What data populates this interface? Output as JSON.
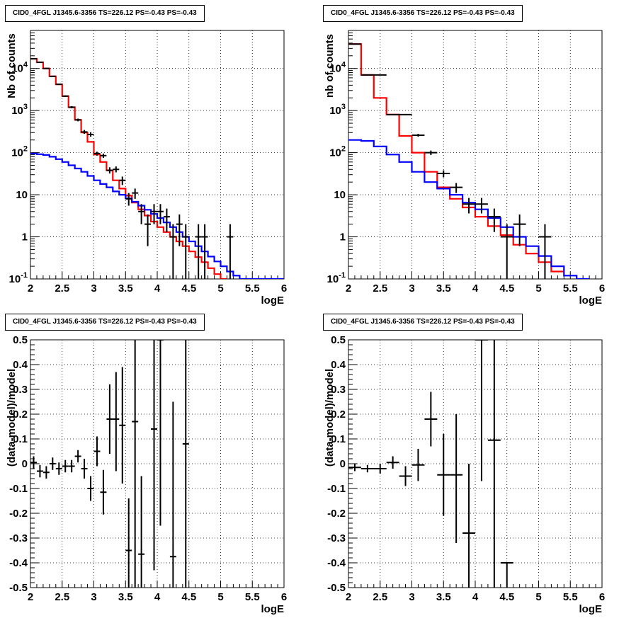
{
  "pads": [
    {
      "title": "CID0_4FGL J1345.6-3356 TS=226.12 PS=-0.43 PS=-0.43"
    },
    {
      "title": "CID0_4FGL J1345.6-3356 TS=226.12 PS=-0.43 PS=-0.43"
    },
    {
      "title": "CID0_4FGL J1345.6-3356 TS=226.12 PS=-0.43 PS=-0.43"
    },
    {
      "title": "CID0_4FGL J1345.6-3356 TS=226.12 PS=-0.43 PS=-0.43"
    }
  ],
  "colors": {
    "total_model": "#ff0000",
    "background_model": "#0000ff",
    "data": "#000000"
  },
  "chart_data": [
    {
      "type": "line",
      "title": "CID0_4FGL J1345.6-3356 TS=226.12 PS=-0.43 PS=-0.43",
      "xlabel": "logE",
      "ylabel": "Nb of counts",
      "xlim": [
        2,
        6
      ],
      "ylim": [
        0.1,
        80000
      ],
      "yscale": "log",
      "grid": true,
      "xticks": [
        "2",
        "2.5",
        "3",
        "3.5",
        "4",
        "4.5",
        "5",
        "5.5",
        "6"
      ],
      "yticks": [
        {
          "value": 0.1,
          "label": "10^-1"
        },
        {
          "value": 1,
          "label": "1"
        },
        {
          "value": 10,
          "label": "10"
        },
        {
          "value": 100,
          "label": "10^2"
        },
        {
          "value": 1000,
          "label": "10^3"
        },
        {
          "value": 10000,
          "label": "10^4"
        }
      ],
      "bin_width": 0.1,
      "series": [
        {
          "key": "red",
          "style": "step",
          "x_start": 2.0,
          "values": [
            17000,
            14000,
            10000,
            6500,
            4200,
            2200,
            1200,
            600,
            300,
            180,
            90,
            60,
            38,
            22,
            14,
            9.5,
            6.5,
            4.5,
            3.2,
            2.3,
            1.7,
            1.3,
            1.0,
            0.78,
            0.6,
            0.45,
            0.33,
            0.25,
            0.18,
            0.13,
            0.1
          ]
        },
        {
          "key": "blue",
          "style": "step",
          "x_start": 2.0,
          "values": [
            95,
            92,
            88,
            80,
            70,
            60,
            50,
            42,
            35,
            28,
            22,
            18,
            15,
            12,
            10,
            8.2,
            6.8,
            5.5,
            4.4,
            3.5,
            2.8,
            2.2,
            1.7,
            1.3,
            1.0,
            0.78,
            0.6,
            0.45,
            0.34,
            0.26,
            0.2,
            0.15,
            0.12,
            0.1,
            0.1,
            0.1,
            0.1,
            0.1,
            0.1,
            0.1
          ]
        },
        {
          "key": "data",
          "style": "errorbar",
          "xerr": 0.05,
          "points": [
            {
              "x": 2.05,
              "y": 17000,
              "lo": 16700,
              "hi": 17300
            },
            {
              "x": 2.15,
              "y": 14000,
              "lo": 13750,
              "hi": 14250
            },
            {
              "x": 2.25,
              "y": 10000,
              "lo": 9800,
              "hi": 10200
            },
            {
              "x": 2.35,
              "y": 6500,
              "lo": 6350,
              "hi": 6650
            },
            {
              "x": 2.45,
              "y": 4200,
              "lo": 4070,
              "hi": 4330
            },
            {
              "x": 2.55,
              "y": 2200,
              "lo": 2110,
              "hi": 2290
            },
            {
              "x": 2.65,
              "y": 1200,
              "lo": 1130,
              "hi": 1270
            },
            {
              "x": 2.75,
              "y": 600,
              "lo": 555,
              "hi": 645
            },
            {
              "x": 2.85,
              "y": 310,
              "lo": 280,
              "hi": 345
            },
            {
              "x": 2.95,
              "y": 270,
              "lo": 240,
              "hi": 305
            },
            {
              "x": 3.05,
              "y": 95,
              "lo": 85,
              "hi": 105
            },
            {
              "x": 3.15,
              "y": 85,
              "lo": 75,
              "hi": 95
            },
            {
              "x": 3.25,
              "y": 38,
              "lo": 32,
              "hi": 45
            },
            {
              "x": 3.35,
              "y": 40,
              "lo": 34,
              "hi": 47
            },
            {
              "x": 3.45,
              "y": 22,
              "lo": 17,
              "hi": 27
            },
            {
              "x": 3.55,
              "y": 8,
              "lo": 5.5,
              "hi": 11
            },
            {
              "x": 3.65,
              "y": 11,
              "lo": 8,
              "hi": 14
            },
            {
              "x": 3.75,
              "y": 4,
              "lo": 2,
              "hi": 6
            },
            {
              "x": 3.85,
              "y": 2,
              "lo": 0.6,
              "hi": 3.4
            },
            {
              "x": 3.95,
              "y": 4,
              "lo": 2,
              "hi": 6
            },
            {
              "x": 4.05,
              "y": 4,
              "lo": 2,
              "hi": 6
            },
            {
              "x": 4.15,
              "y": 3,
              "lo": 1.3,
              "hi": 4.7
            },
            {
              "x": 4.25,
              "y": 1,
              "lo": 0.1,
              "hi": 2
            },
            {
              "x": 4.35,
              "y": 2,
              "lo": 0.6,
              "hi": 3.4
            },
            {
              "x": 4.45,
              "y": 1,
              "lo": 0.1,
              "hi": 2
            },
            {
              "x": 4.65,
              "y": 1,
              "lo": 0.1,
              "hi": 2
            },
            {
              "x": 4.75,
              "y": 1,
              "lo": 0.1,
              "hi": 2
            },
            {
              "x": 5.15,
              "y": 1,
              "lo": 0.1,
              "hi": 2
            }
          ]
        }
      ]
    },
    {
      "type": "line",
      "title": "CID0_4FGL J1345.6-3356 TS=226.12 PS=-0.43 PS=-0.43",
      "xlabel": "logE",
      "ylabel": "nb of counts",
      "xlim": [
        2,
        6
      ],
      "ylim": [
        0.1,
        80000
      ],
      "yscale": "log",
      "grid": true,
      "xticks": [
        "2",
        "2.5",
        "3",
        "3.5",
        "4",
        "4.5",
        "5",
        "5.5",
        "6"
      ],
      "yticks": [
        {
          "value": 0.1,
          "label": "10^-1"
        },
        {
          "value": 1,
          "label": "1"
        },
        {
          "value": 10,
          "label": "10"
        },
        {
          "value": 100,
          "label": "10^2"
        },
        {
          "value": 1000,
          "label": "10^3"
        },
        {
          "value": 10000,
          "label": "10^4"
        }
      ],
      "bin_width": 0.2,
      "series": [
        {
          "key": "red",
          "style": "step",
          "x_start": 2.0,
          "values": [
            38000,
            7000,
            2000,
            800,
            250,
            100,
            35,
            15,
            8,
            5,
            3,
            1.8,
            1.1,
            0.65,
            0.4,
            0.25,
            0.15
          ]
        },
        {
          "key": "blue",
          "style": "step",
          "x_start": 2.0,
          "values": [
            200,
            190,
            140,
            90,
            60,
            35,
            20,
            14,
            10,
            6.5,
            4.5,
            2.8,
            1.7,
            1.0,
            0.6,
            0.35,
            0.2,
            0.12,
            0.1
          ]
        },
        {
          "key": "data",
          "style": "errorbar",
          "xerr": 0.1,
          "points": [
            {
              "x": 2.1,
              "y": 38000,
              "lo": 37600,
              "hi": 38400
            },
            {
              "x": 2.3,
              "y": 7000,
              "lo": 6830,
              "hi": 7170
            },
            {
              "x": 2.5,
              "y": 7000,
              "lo": 6830,
              "hi": 7170
            },
            {
              "x": 2.7,
              "y": 800,
              "lo": 770,
              "hi": 830
            },
            {
              "x": 2.9,
              "y": 800,
              "lo": 770,
              "hi": 830
            },
            {
              "x": 3.1,
              "y": 260,
              "lo": 240,
              "hi": 280
            },
            {
              "x": 3.3,
              "y": 100,
              "lo": 88,
              "hi": 112
            },
            {
              "x": 3.5,
              "y": 32,
              "lo": 26,
              "hi": 38
            },
            {
              "x": 3.7,
              "y": 15,
              "lo": 11,
              "hi": 19
            },
            {
              "x": 3.9,
              "y": 6,
              "lo": 3.6,
              "hi": 8.4
            },
            {
              "x": 4.1,
              "y": 6,
              "lo": 3.6,
              "hi": 8.4
            },
            {
              "x": 4.3,
              "y": 3,
              "lo": 1.3,
              "hi": 4.7
            },
            {
              "x": 4.5,
              "y": 1,
              "lo": 0.1,
              "hi": 2
            },
            {
              "x": 4.7,
              "y": 2,
              "lo": 0.6,
              "hi": 3.4
            },
            {
              "x": 5.1,
              "y": 1,
              "lo": 0.1,
              "hi": 2
            }
          ]
        }
      ]
    },
    {
      "type": "scatter",
      "title": "CID0_4FGL J1345.6-3356 TS=226.12 PS=-0.43 PS=-0.43",
      "xlabel": "logE",
      "ylabel": "(data-model)/model",
      "xlim": [
        2,
        6
      ],
      "ylim": [
        -0.5,
        0.5
      ],
      "yscale": "linear",
      "grid": true,
      "xticks": [
        "2",
        "2.5",
        "3",
        "3.5",
        "4",
        "4.5",
        "5",
        "5.5",
        "6"
      ],
      "yticks": [
        {
          "value": -0.5,
          "label": "-0.5"
        },
        {
          "value": -0.4,
          "label": "-0.4"
        },
        {
          "value": -0.3,
          "label": "-0.3"
        },
        {
          "value": -0.2,
          "label": "-0.2"
        },
        {
          "value": -0.1,
          "label": "-0.1"
        },
        {
          "value": 0,
          "label": "0"
        },
        {
          "value": 0.1,
          "label": "0.1"
        },
        {
          "value": 0.2,
          "label": "0.2"
        },
        {
          "value": 0.3,
          "label": "0.3"
        },
        {
          "value": 0.4,
          "label": "0.4"
        },
        {
          "value": 0.5,
          "label": "0.5"
        }
      ],
      "series": [
        {
          "key": "data",
          "style": "errorbar",
          "xerr": 0.05,
          "points": [
            {
              "x": 2.05,
              "y": 0.005,
              "lo": -0.02,
              "hi": 0.03
            },
            {
              "x": 2.15,
              "y": -0.03,
              "lo": -0.055,
              "hi": -0.005
            },
            {
              "x": 2.25,
              "y": -0.035,
              "lo": -0.06,
              "hi": -0.01
            },
            {
              "x": 2.35,
              "y": 0.0,
              "lo": -0.025,
              "hi": 0.025
            },
            {
              "x": 2.45,
              "y": -0.02,
              "lo": -0.045,
              "hi": 0.005
            },
            {
              "x": 2.55,
              "y": -0.01,
              "lo": -0.035,
              "hi": 0.015
            },
            {
              "x": 2.65,
              "y": -0.01,
              "lo": -0.035,
              "hi": 0.015
            },
            {
              "x": 2.75,
              "y": 0.03,
              "lo": 0.005,
              "hi": 0.055
            },
            {
              "x": 2.85,
              "y": -0.02,
              "lo": -0.06,
              "hi": 0.02
            },
            {
              "x": 2.95,
              "y": -0.1,
              "lo": -0.15,
              "hi": -0.05
            },
            {
              "x": 3.05,
              "y": 0.05,
              "lo": -0.01,
              "hi": 0.11
            },
            {
              "x": 3.15,
              "y": -0.115,
              "lo": -0.205,
              "hi": -0.025
            },
            {
              "x": 3.25,
              "y": 0.18,
              "lo": 0.04,
              "hi": 0.32
            },
            {
              "x": 3.35,
              "y": 0.18,
              "lo": -0.03,
              "hi": 0.37
            },
            {
              "x": 3.45,
              "y": 0.155,
              "lo": -0.08,
              "hi": 0.39
            },
            {
              "x": 3.55,
              "y": -0.35,
              "lo": -0.5,
              "hi": -0.14
            },
            {
              "x": 3.65,
              "y": 0.17,
              "lo": -0.5,
              "hi": 0.5
            },
            {
              "x": 3.75,
              "y": -0.365,
              "lo": -0.5,
              "hi": -0.05
            },
            {
              "x": 3.95,
              "y": 0.14,
              "lo": -0.43,
              "hi": 0.5
            },
            {
              "x": 4.05,
              "y": 0.5,
              "lo": -0.25,
              "hi": 0.5
            },
            {
              "x": 4.25,
              "y": -0.375,
              "lo": -0.5,
              "hi": 0.25
            },
            {
              "x": 4.45,
              "y": 0.08,
              "lo": -0.5,
              "hi": 0.5
            }
          ]
        }
      ]
    },
    {
      "type": "scatter",
      "title": "CID0_4FGL J1345.6-3356 TS=226.12 PS=-0.43 PS=-0.43",
      "xlabel": "logE",
      "ylabel": "(data-model)/model",
      "xlim": [
        2,
        6
      ],
      "ylim": [
        -0.5,
        0.5
      ],
      "yscale": "linear",
      "grid": true,
      "xticks": [
        "2",
        "2.5",
        "3",
        "3.5",
        "4",
        "4.5",
        "5",
        "5.5",
        "6"
      ],
      "yticks": [
        {
          "value": -0.5,
          "label": "-0.5"
        },
        {
          "value": -0.4,
          "label": "-0.4"
        },
        {
          "value": -0.3,
          "label": "-0.3"
        },
        {
          "value": -0.2,
          "label": "-0.2"
        },
        {
          "value": -0.1,
          "label": "-0.1"
        },
        {
          "value": 0,
          "label": "0"
        },
        {
          "value": 0.1,
          "label": "0.1"
        },
        {
          "value": 0.2,
          "label": "0.2"
        },
        {
          "value": 0.3,
          "label": "0.3"
        },
        {
          "value": 0.4,
          "label": "0.4"
        },
        {
          "value": 0.5,
          "label": "0.5"
        }
      ],
      "series": [
        {
          "key": "data",
          "style": "errorbar",
          "xerr": 0.1,
          "points": [
            {
              "x": 2.1,
              "y": -0.015,
              "lo": -0.03,
              "hi": 0.0
            },
            {
              "x": 2.3,
              "y": -0.02,
              "lo": -0.035,
              "hi": -0.005
            },
            {
              "x": 2.5,
              "y": -0.02,
              "lo": -0.04,
              "hi": 0.0
            },
            {
              "x": 2.7,
              "y": 0.005,
              "lo": -0.02,
              "hi": 0.03
            },
            {
              "x": 2.9,
              "y": -0.05,
              "lo": -0.09,
              "hi": -0.01
            },
            {
              "x": 3.1,
              "y": -0.005,
              "lo": -0.07,
              "hi": 0.06
            },
            {
              "x": 3.3,
              "y": 0.18,
              "lo": 0.07,
              "hi": 0.29
            },
            {
              "x": 3.5,
              "y": -0.045,
              "lo": -0.21,
              "hi": 0.12
            },
            {
              "x": 3.7,
              "y": -0.045,
              "lo": -0.32,
              "hi": 0.2
            },
            {
              "x": 3.9,
              "y": -0.28,
              "lo": -0.5,
              "hi": 0.0
            },
            {
              "x": 4.1,
              "y": 0.5,
              "lo": -0.07,
              "hi": 0.5
            },
            {
              "x": 4.3,
              "y": 0.095,
              "lo": -0.5,
              "hi": 0.5
            },
            {
              "x": 4.5,
              "y": -0.4,
              "lo": -0.5,
              "hi": -0.4
            }
          ]
        }
      ]
    }
  ]
}
